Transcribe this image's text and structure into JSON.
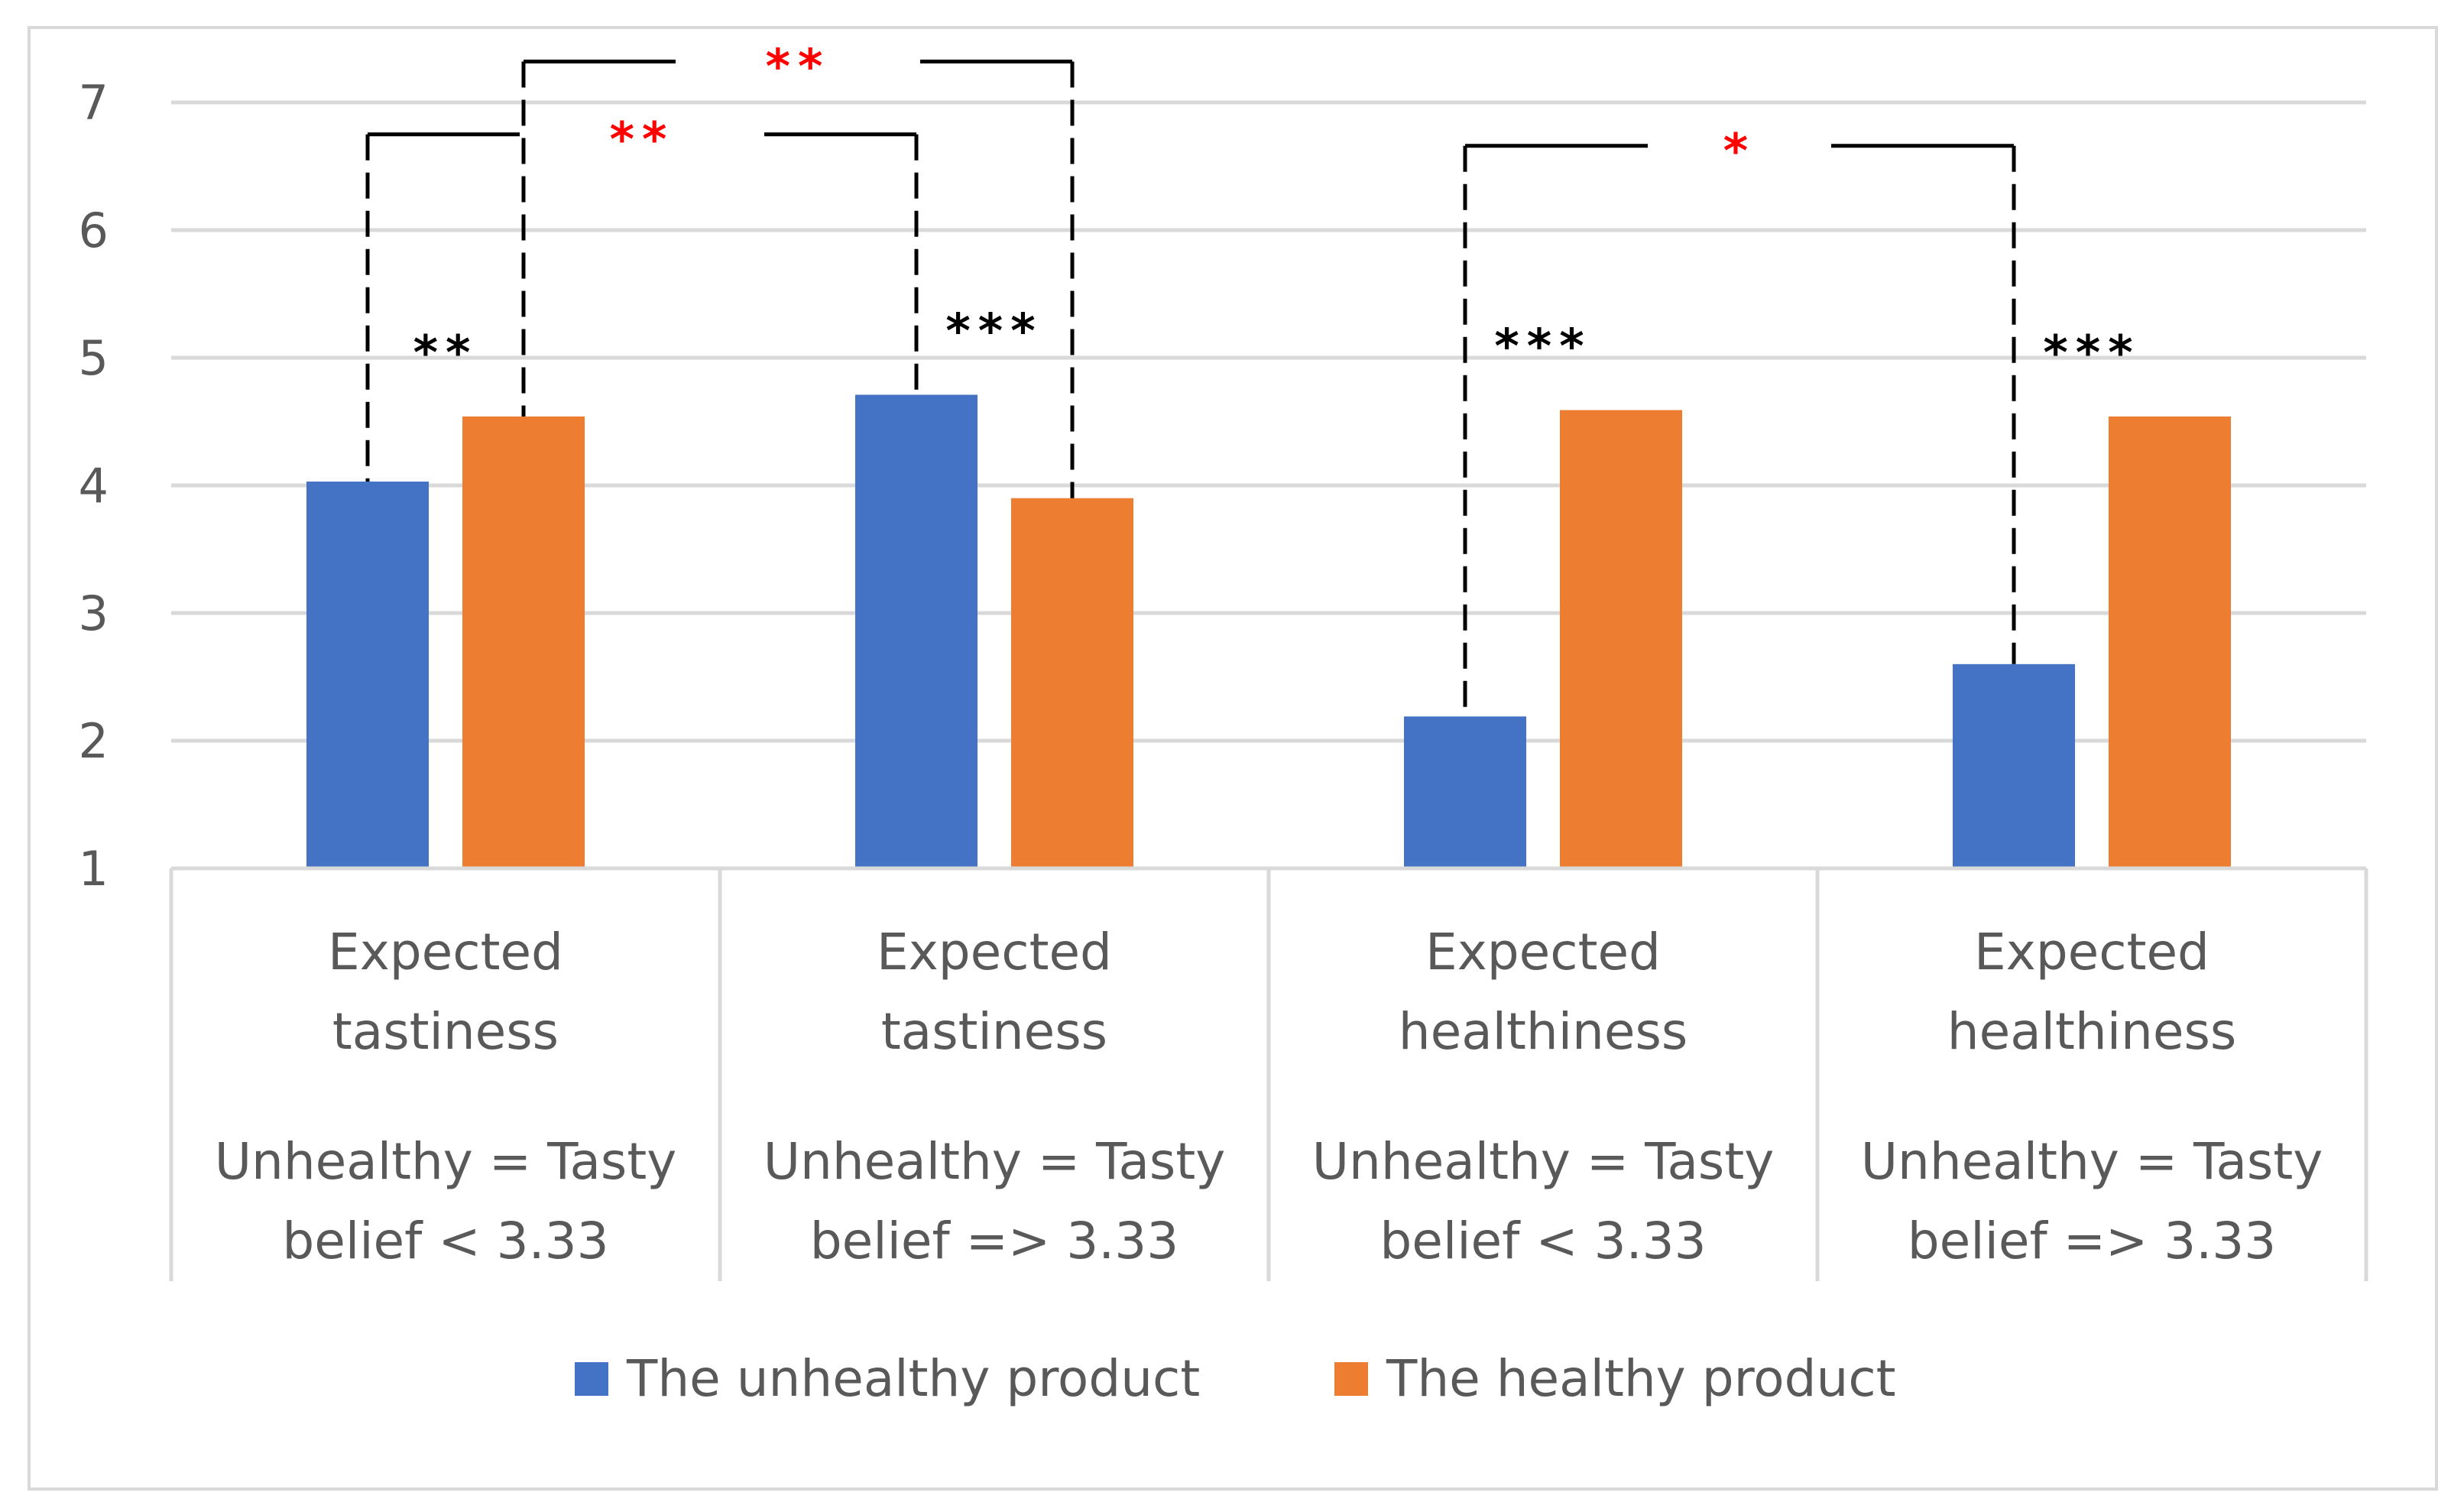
{
  "chart_data": {
    "type": "bar",
    "title": "",
    "xlabel": "",
    "ylabel": "",
    "ylim": [
      1,
      7
    ],
    "yticks": [
      1,
      2,
      3,
      4,
      5,
      6,
      7
    ],
    "grid": true,
    "legend_position": "bottom",
    "categories": [
      {
        "line1": "Expected",
        "line2": "tastiness",
        "line3": "Unhealthy = Tasty",
        "line4": "belief < 3.33"
      },
      {
        "line1": "Expected",
        "line2": "tastiness",
        "line3": "Unhealthy = Tasty",
        "line4": "belief => 3.33"
      },
      {
        "line1": "Expected",
        "line2": "healthiness",
        "line3": "Unhealthy = Tasty",
        "line4": "belief < 3.33"
      },
      {
        "line1": "Expected",
        "line2": "healthiness",
        "line3": "Unhealthy = Tasty",
        "line4": "belief => 3.33"
      }
    ],
    "series": [
      {
        "name": "The unhealthy product",
        "color": "#4472c4",
        "values": [
          4.03,
          4.71,
          2.19,
          2.6
        ]
      },
      {
        "name": "The healthy product",
        "color": "#ed7d31",
        "values": [
          4.54,
          3.9,
          4.59,
          4.54
        ]
      }
    ],
    "within_group_significance": [
      "**",
      "***",
      "***",
      "***"
    ],
    "between_group_brackets": [
      {
        "label": "**",
        "from": {
          "category": 0,
          "series": 0
        },
        "to": {
          "category": 1,
          "series": 0
        },
        "level": 6.75
      },
      {
        "label": "**",
        "from": {
          "category": 0,
          "series": 1
        },
        "to": {
          "category": 1,
          "series": 1
        },
        "level": 7.32
      },
      {
        "label": "*",
        "from": {
          "category": 2,
          "series": 0
        },
        "to": {
          "category": 3,
          "series": 0
        },
        "level": 6.66
      }
    ],
    "colors": {
      "significance_within": "#000000",
      "significance_between": "#ff0000"
    }
  }
}
